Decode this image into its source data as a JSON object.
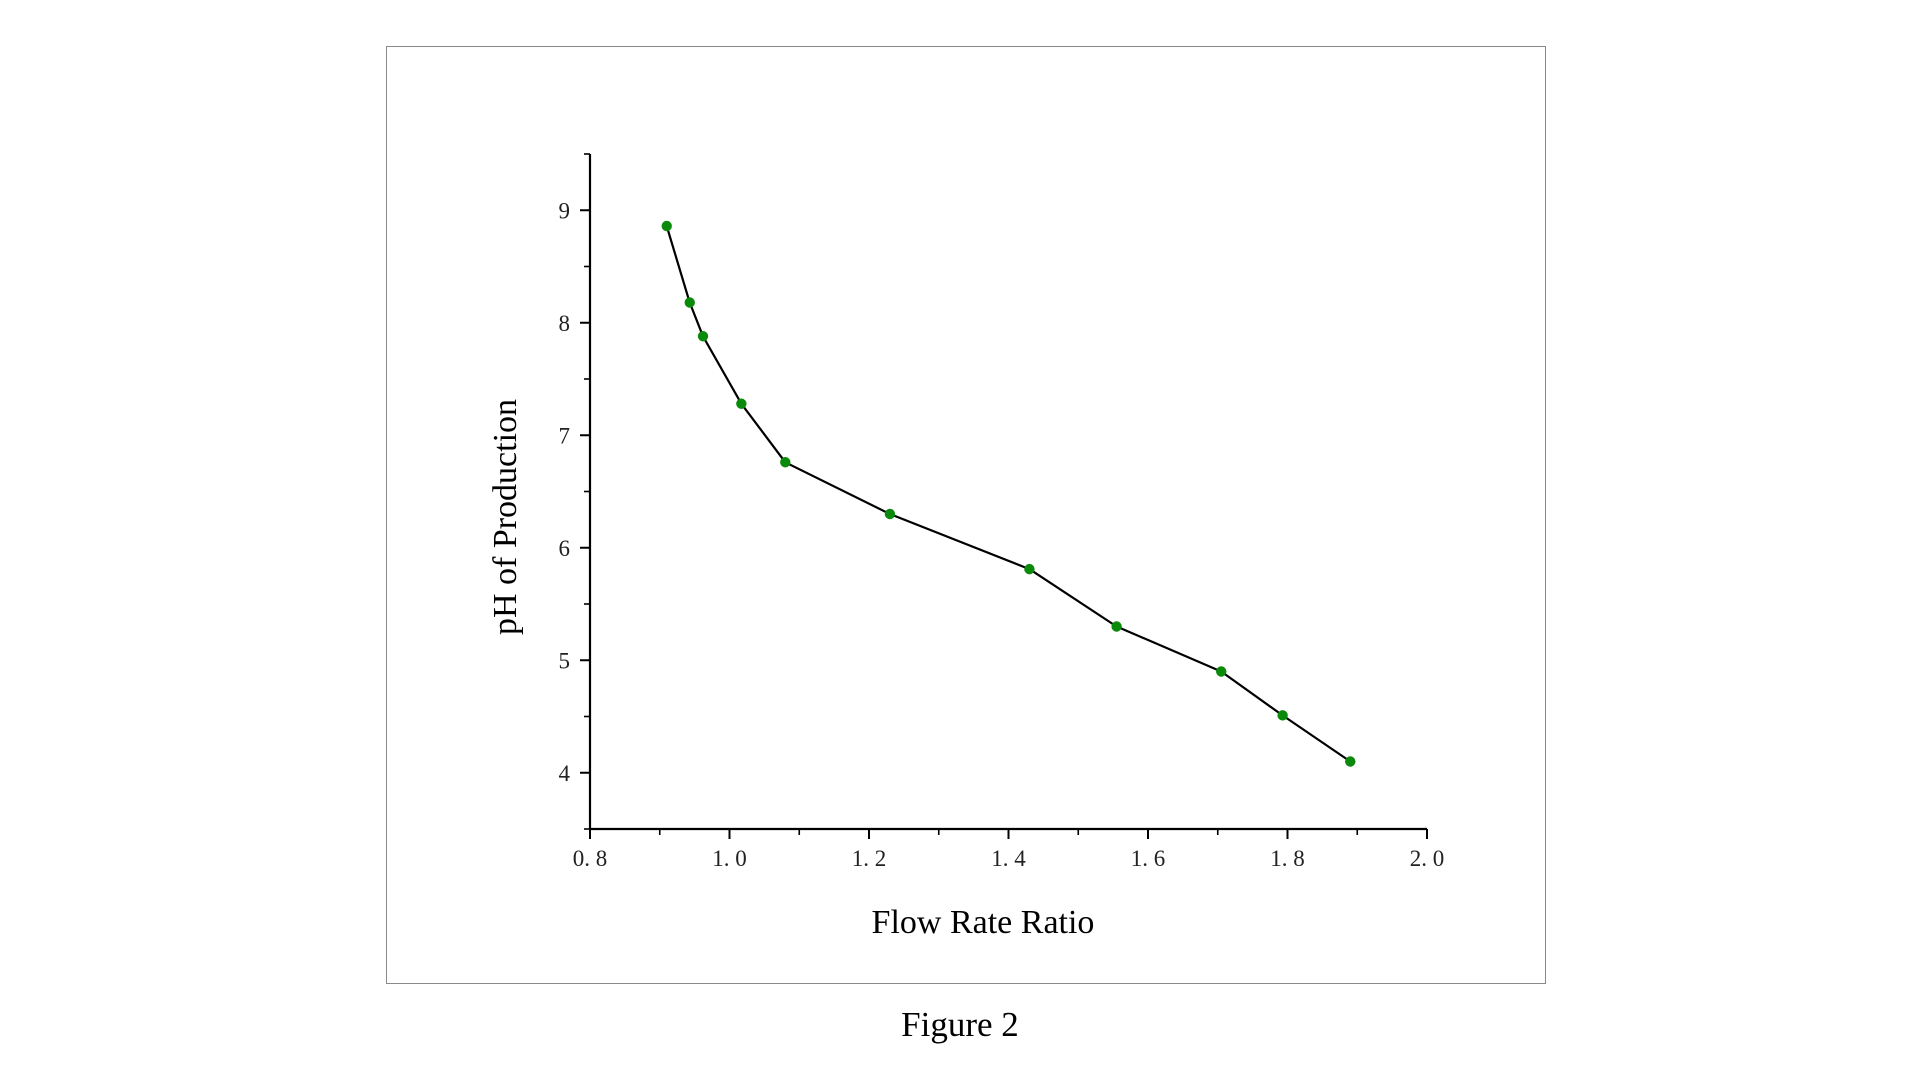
{
  "caption": "Figure 2",
  "chart_data": {
    "type": "line",
    "title": "",
    "xlabel": "Flow Rate Ratio",
    "ylabel": "pH of Production",
    "xlim": [
      0.8,
      2.0
    ],
    "ylim": [
      3.5,
      9.5
    ],
    "xticks": [
      0.8,
      1.0,
      1.2,
      1.4,
      1.6,
      1.8,
      2.0
    ],
    "xtick_labels": [
      "0. 8",
      "1. 0",
      "1. 2",
      "1. 4",
      "1. 6",
      "1. 8",
      "2. 0"
    ],
    "yticks": [
      4,
      5,
      6,
      7,
      8,
      9
    ],
    "ytick_labels": [
      "4",
      "5",
      "6",
      "7",
      "8",
      "9"
    ],
    "grid": false,
    "legend": "none",
    "line_color": "#000000",
    "marker_color": "#0a8a0a",
    "series": [
      {
        "x": [
          0.91,
          0.943,
          0.962,
          1.017,
          1.08,
          1.23,
          1.43,
          1.555,
          1.705,
          1.793,
          1.89
        ],
        "y": [
          8.86,
          8.18,
          7.88,
          7.28,
          6.76,
          6.3,
          5.81,
          5.3,
          4.9,
          4.51,
          4.1
        ]
      }
    ]
  }
}
